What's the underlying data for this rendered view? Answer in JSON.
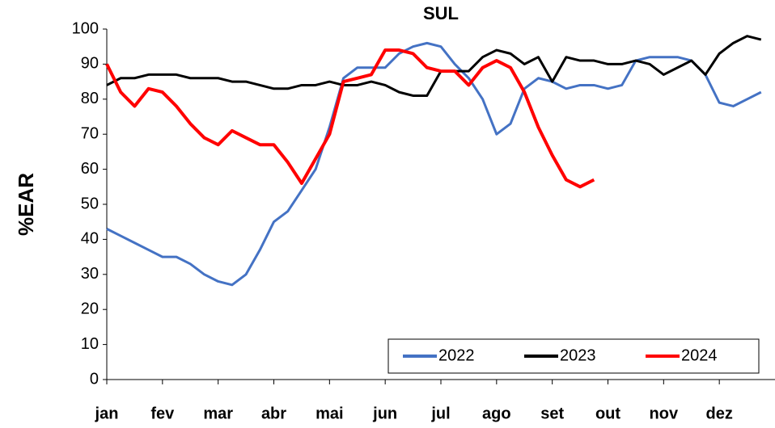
{
  "chart_data": {
    "type": "line",
    "title": "SUL",
    "y_label": "%EAR",
    "categories": [
      "jan",
      null,
      null,
      null,
      "fev",
      null,
      null,
      null,
      "mar",
      null,
      null,
      null,
      "abr",
      null,
      null,
      null,
      "mai",
      null,
      null,
      null,
      "jun",
      null,
      null,
      null,
      "jul",
      null,
      null,
      null,
      "ago",
      null,
      null,
      null,
      "set",
      null,
      null,
      null,
      "out",
      null,
      null,
      null,
      "nov",
      null,
      null,
      null,
      "dez",
      null,
      null,
      null
    ],
    "series": [
      {
        "name": "2022",
        "color": "#4472c4",
        "values": [
          43,
          41,
          39,
          37,
          35,
          35,
          33,
          30,
          28,
          27,
          30,
          37,
          45,
          48,
          54,
          60,
          72,
          86,
          89,
          89,
          89,
          93,
          95,
          96,
          95,
          90,
          86,
          80,
          70,
          73,
          83,
          86,
          85,
          83,
          84,
          84,
          83,
          84,
          91,
          92,
          92,
          92,
          91,
          87,
          79,
          78,
          80,
          82
        ]
      },
      {
        "name": "2023",
        "color": "#000000",
        "values": [
          84,
          86,
          86,
          87,
          87,
          87,
          86,
          86,
          86,
          85,
          85,
          84,
          83,
          83,
          84,
          84,
          85,
          84,
          84,
          85,
          84,
          82,
          81,
          81,
          88,
          88,
          88,
          92,
          94,
          93,
          90,
          92,
          85,
          92,
          91,
          91,
          90,
          90,
          91,
          90,
          87,
          89,
          91,
          87,
          93,
          96,
          98,
          97
        ]
      },
      {
        "name": "2024",
        "color": "#ff0000",
        "values": [
          90,
          82,
          78,
          83,
          82,
          78,
          73,
          69,
          67,
          71,
          69,
          67,
          67,
          62,
          56,
          63,
          70,
          85,
          86,
          87,
          94,
          94,
          93,
          89,
          88,
          88,
          84,
          89,
          91,
          89,
          82,
          72,
          64,
          57,
          55,
          57,
          null,
          null,
          null,
          null,
          null,
          null,
          null,
          null,
          null,
          null,
          null,
          null
        ]
      }
    ],
    "ylim": [
      0,
      100
    ],
    "yticks": [
      0,
      10,
      20,
      30,
      40,
      50,
      60,
      70,
      80,
      90,
      100
    ],
    "grid": false,
    "legend": "bottom-right"
  }
}
